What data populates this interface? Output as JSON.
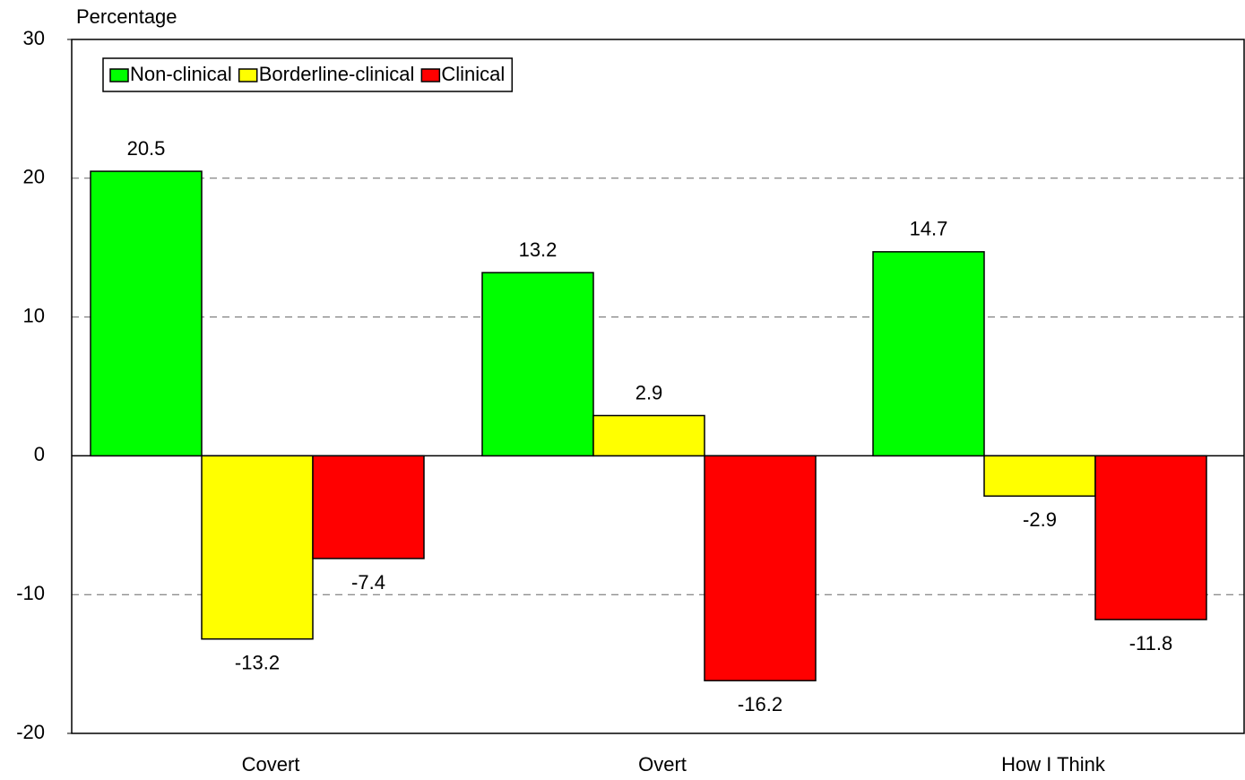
{
  "chart_data": {
    "type": "bar",
    "y_label": "Percentage",
    "categories": [
      "Covert",
      "Overt",
      "How I Think"
    ],
    "series": [
      {
        "name": "Non-clinical",
        "color": "#00ff00",
        "values": [
          20.5,
          13.2,
          14.7
        ]
      },
      {
        "name": "Borderline-clinical",
        "color": "#ffff00",
        "values": [
          -13.2,
          2.9,
          -2.9
        ]
      },
      {
        "name": "Clinical",
        "color": "#ff0000",
        "values": [
          -7.4,
          -16.2,
          -11.8
        ]
      }
    ],
    "ylim": [
      -20,
      30
    ],
    "yticks": [
      -20,
      -10,
      0,
      10,
      20,
      30
    ],
    "grid": true,
    "legend": "top-left"
  }
}
